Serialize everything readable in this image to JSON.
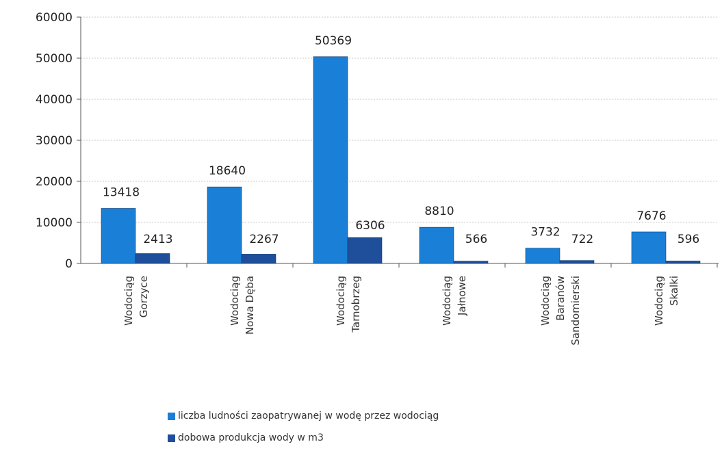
{
  "chart_data": {
    "type": "bar",
    "title": "",
    "xlabel": "",
    "ylabel": "",
    "ylim": [
      0,
      60000
    ],
    "yticks": [
      0,
      10000,
      20000,
      30000,
      40000,
      50000,
      60000
    ],
    "ytick_labels": [
      "0",
      "10000",
      "20000",
      "30000",
      "40000",
      "50000",
      "60000"
    ],
    "grid": true,
    "legend_position": "bottom",
    "categories": [
      [
        "Wodociąg",
        "Gorzyce"
      ],
      [
        "Wodociąg",
        "Nowa Dęba"
      ],
      [
        "Wodociąg",
        "Tarnobrzeg"
      ],
      [
        "Wodociąg",
        "Jałnowe"
      ],
      [
        "Wodociąg",
        "Baranów",
        "Sandomierski"
      ],
      [
        "Wodociąg",
        "Skalki"
      ]
    ],
    "series": [
      {
        "name": "liczba ludności zaopatrywanej w wodę przez wodociąg",
        "color": "#1a7fd6",
        "values": [
          13418,
          18640,
          50369,
          8810,
          3732,
          7676
        ],
        "labels": [
          "13418",
          "18640",
          "50369",
          "8810",
          "3732",
          "7676"
        ]
      },
      {
        "name": "dobowa produkcja wody w m3",
        "color": "#1f4f9a",
        "values": [
          2413,
          2267,
          6306,
          566,
          722,
          596
        ],
        "labels": [
          "2413",
          "2267",
          "6306",
          "566",
          "722",
          "596"
        ]
      }
    ]
  }
}
